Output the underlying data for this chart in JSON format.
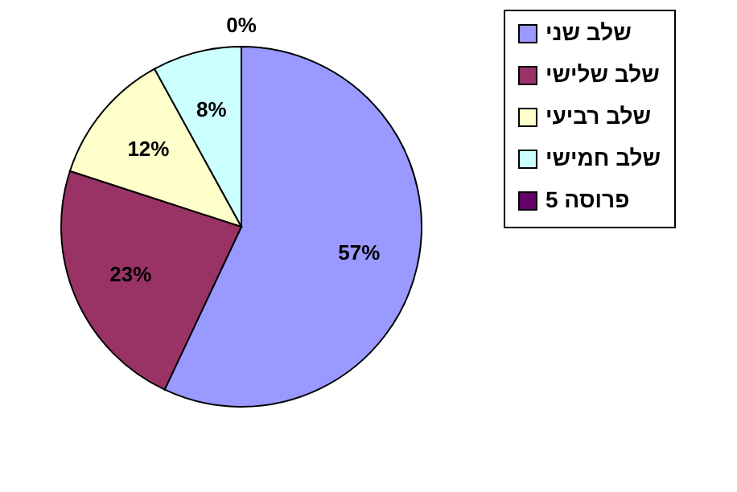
{
  "chart_data": {
    "type": "pie",
    "categories": [
      "שלב שני",
      "שלב שלישי",
      "שלב רביעי",
      "שלב חמישי",
      "פרוסה 5"
    ],
    "values": [
      57,
      23,
      12,
      8,
      0
    ],
    "colors": [
      "#9999ff",
      "#993366",
      "#ffffcc",
      "#ccffff",
      "#660066"
    ],
    "value_labels": [
      "57%",
      "23%",
      "12%",
      "8%",
      "0%"
    ],
    "legend": "right"
  }
}
